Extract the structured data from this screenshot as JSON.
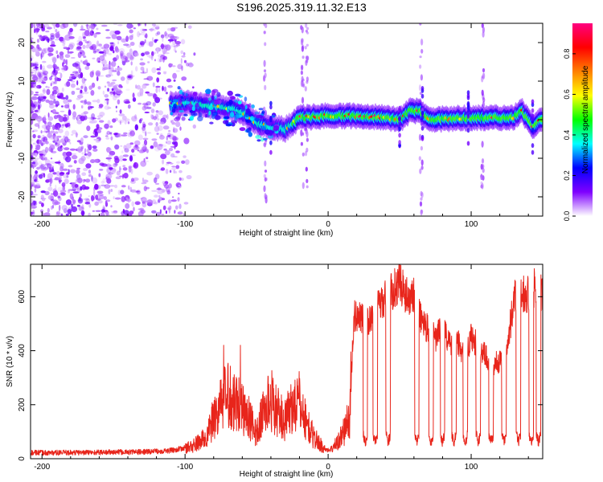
{
  "figure": {
    "title": "S196.2025.319.11.32.E13"
  },
  "chart_data": [
    {
      "type": "heatmap",
      "title": "S196.2025.319.11.32.E13",
      "xlabel": "Height of straight line (km)",
      "ylabel": "Frequency (Hz)",
      "xlim": [
        -208,
        150
      ],
      "ylim": [
        -25,
        25
      ],
      "x_ticks": [
        -200,
        -100,
        0,
        100
      ],
      "x_tick_labels": [
        "-200",
        "-100",
        "0",
        "100"
      ],
      "y_ticks": [
        -20,
        -10,
        0,
        10,
        20
      ],
      "y_tick_labels": [
        "-20",
        "-10",
        "0",
        "10",
        "20"
      ],
      "colorbar": {
        "label": "Normalized spectral amplitude",
        "range": [
          0,
          0.95
        ],
        "ticks": [
          0.0,
          0.2,
          0.4,
          0.6,
          0.8
        ],
        "tick_labels": [
          "0.0",
          "0.2",
          "0.4",
          "0.6",
          "0.8"
        ],
        "colors": [
          "#ffffff",
          "#7f00ff",
          "#0000ff",
          "#00ffff",
          "#00ff00",
          "#ffff00",
          "#ff8000",
          "#ff0000",
          "#ff0080"
        ]
      },
      "ridge": [
        {
          "x": -110,
          "y": 4.0
        },
        {
          "x": -100,
          "y": 4.5
        },
        {
          "x": -90,
          "y": 4.0
        },
        {
          "x": -80,
          "y": 3.5
        },
        {
          "x": -70,
          "y": 3.0
        },
        {
          "x": -60,
          "y": 2.0
        },
        {
          "x": -50,
          "y": -1.0
        },
        {
          "x": -40,
          "y": -2.0
        },
        {
          "x": -30,
          "y": -2.5
        },
        {
          "x": -20,
          "y": 0.5
        },
        {
          "x": 0,
          "y": 1.0
        },
        {
          "x": 20,
          "y": 1.0
        },
        {
          "x": 40,
          "y": 0.5
        },
        {
          "x": 50,
          "y": 0.0
        },
        {
          "x": 58,
          "y": 2.5
        },
        {
          "x": 65,
          "y": 2.0
        },
        {
          "x": 70,
          "y": 0.0
        },
        {
          "x": 100,
          "y": 0.5
        },
        {
          "x": 130,
          "y": 0.5
        },
        {
          "x": 135,
          "y": 2.5
        },
        {
          "x": 143,
          "y": -2.0
        },
        {
          "x": 150,
          "y": 0.5
        }
      ]
    },
    {
      "type": "line",
      "xlabel": "Height of straight line (km)",
      "ylabel": "SNR (10 * v/v)",
      "xlim": [
        -208,
        150
      ],
      "ylim": [
        0,
        720
      ],
      "x_ticks": [
        -200,
        -100,
        0,
        100
      ],
      "x_tick_labels": [
        "-200",
        "-100",
        "0",
        "100"
      ],
      "y_ticks": [
        0,
        200,
        400,
        600
      ],
      "y_tick_labels": [
        "0",
        "200",
        "400",
        "600"
      ],
      "color": "#e8251b",
      "series": [
        {
          "name": "SNR",
          "x": [
            -208,
            -190,
            -170,
            -150,
            -130,
            -110,
            -95,
            -85,
            -80,
            -75,
            -70,
            -65,
            -60,
            -55,
            -50,
            -45,
            -40,
            -35,
            -30,
            -25,
            -20,
            -15,
            -10,
            -5,
            0,
            5,
            10,
            15,
            18,
            22,
            28,
            35,
            45,
            50,
            55,
            60,
            65,
            70,
            75,
            80,
            85,
            90,
            95,
            100,
            105,
            110,
            115,
            120,
            125,
            130,
            135,
            140,
            145,
            150
          ],
          "values": [
            22,
            22,
            23,
            24,
            25,
            30,
            45,
            80,
            150,
            200,
            240,
            220,
            190,
            150,
            90,
            180,
            220,
            170,
            140,
            200,
            210,
            130,
            80,
            50,
            30,
            50,
            90,
            150,
            520,
            540,
            500,
            560,
            620,
            660,
            600,
            610,
            520,
            480,
            440,
            500,
            420,
            440,
            380,
            450,
            420,
            380,
            350,
            360,
            400,
            600,
            620,
            610,
            640,
            600
          ]
        }
      ],
      "dropouts": [
        26,
        33,
        42,
        62,
        72,
        80,
        88,
        96,
        105,
        114,
        123,
        133,
        142,
        147
      ]
    }
  ]
}
